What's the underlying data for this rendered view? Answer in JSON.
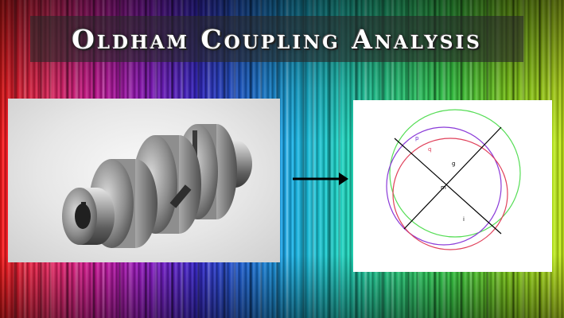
{
  "title": "Oldham Coupling Analysis",
  "diagram": {
    "labels": {
      "p": "p",
      "q": "q",
      "g": "g",
      "m": "m",
      "i": "i"
    },
    "circle_colors": {
      "green": "#55dd55",
      "purple": "#8a3ad8",
      "red": "#e0405a"
    },
    "line_color": "#000000"
  },
  "icons": {
    "arrow": "right-arrow-icon"
  }
}
